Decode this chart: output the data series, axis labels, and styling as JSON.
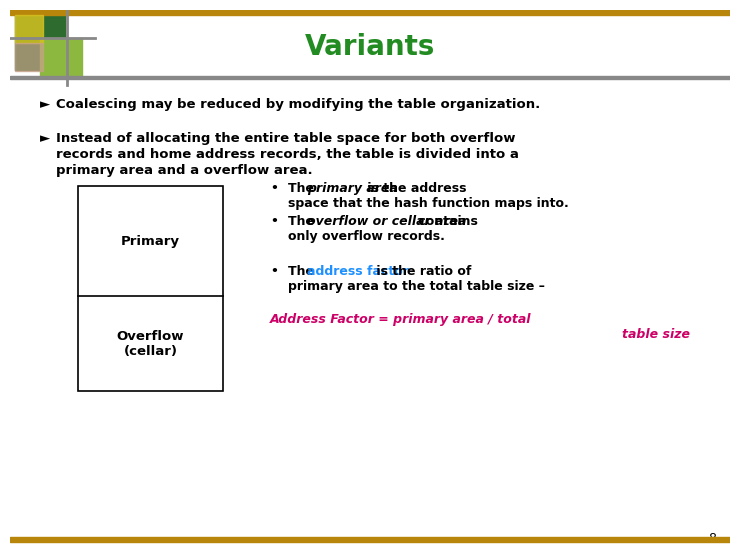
{
  "title": "Variants",
  "title_color": "#228B22",
  "title_fontsize": 20,
  "bg_color": "#FFFFFF",
  "top_bar_color": "#B8860B",
  "bottom_bar_color": "#B8860B",
  "slide_number": "8",
  "bullet1": "Coalescing may be reduced by modifying the table organization.",
  "bullet2_line1": "Instead of allocating the entire table space for both overflow",
  "bullet2_line2": "records and home address records, the table is divided into a",
  "bullet2_line3": "primary area and a overflow area.",
  "box_primary_label": "Primary",
  "box_overflow_label": "Overflow\n(cellar)",
  "b3_pre": "The ",
  "b3_italic": "primary area",
  "b3_post": " is the address",
  "b3_line2": "space that the hash function maps into.",
  "b4_pre": "The ",
  "b4_italic": "overflow or cellar area",
  "b4_post": " contains",
  "b4_line2": "only overflow records.",
  "b5_pre": "The ",
  "b5_colored": "address factor",
  "b5_post": " is the ratio of",
  "b5_line2": "primary area to the total table size –",
  "formula_line1": "Address Factor = primary area / total",
  "formula_line2": "table size",
  "formula_color": "#CC0066",
  "address_factor_color": "#1E90FF",
  "text_color": "#000000",
  "body_fontsize": 9.5,
  "small_fontsize": 9.0,
  "logo_green_dark": "#2E6B2E",
  "logo_green_light": "#8DB840",
  "logo_yellow": "#D4C020",
  "logo_pink": "#C8A08A"
}
